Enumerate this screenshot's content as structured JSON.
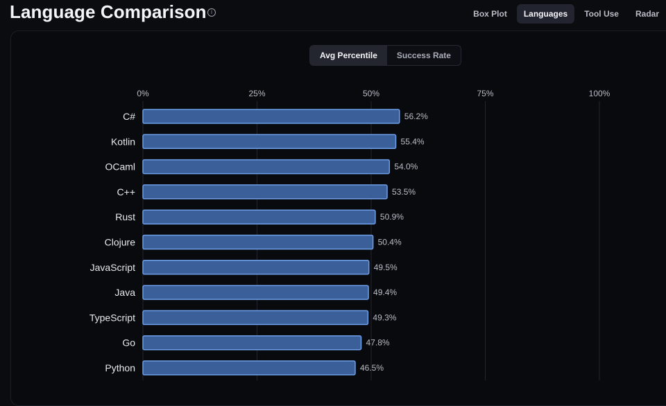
{
  "header": {
    "title": "Language Comparison",
    "info_glyph": "i",
    "tabs": [
      {
        "label": "Box Plot",
        "active": false
      },
      {
        "label": "Languages",
        "active": true
      },
      {
        "label": "Tool Use",
        "active": false
      },
      {
        "label": "Radar",
        "active": false
      }
    ]
  },
  "metric_toggle": {
    "options": [
      {
        "label": "Avg Percentile",
        "active": true
      },
      {
        "label": "Success Rate",
        "active": false
      }
    ]
  },
  "colors": {
    "bar_fill": "#3a5f99",
    "bar_stroke": "#6e9fe8",
    "grid": "#23262f"
  },
  "chart_data": {
    "type": "bar",
    "orientation": "horizontal",
    "categories": [
      "C#",
      "Kotlin",
      "OCaml",
      "C++",
      "Rust",
      "Clojure",
      "JavaScript",
      "Java",
      "TypeScript",
      "Go",
      "Python"
    ],
    "values": [
      56.2,
      55.4,
      54.0,
      53.5,
      50.9,
      50.4,
      49.5,
      49.4,
      49.3,
      47.8,
      46.5
    ],
    "value_labels": [
      "56.2%",
      "55.4%",
      "54.0%",
      "53.5%",
      "50.9%",
      "50.4%",
      "49.5%",
      "49.4%",
      "49.3%",
      "47.8%",
      "46.5%"
    ],
    "xlim": [
      0,
      100
    ],
    "x_ticks": [
      0,
      25,
      50,
      75,
      100
    ],
    "x_tick_labels": [
      "0%",
      "25%",
      "50%",
      "75%",
      "100%"
    ],
    "x_axis_position": "top",
    "grid": true
  }
}
